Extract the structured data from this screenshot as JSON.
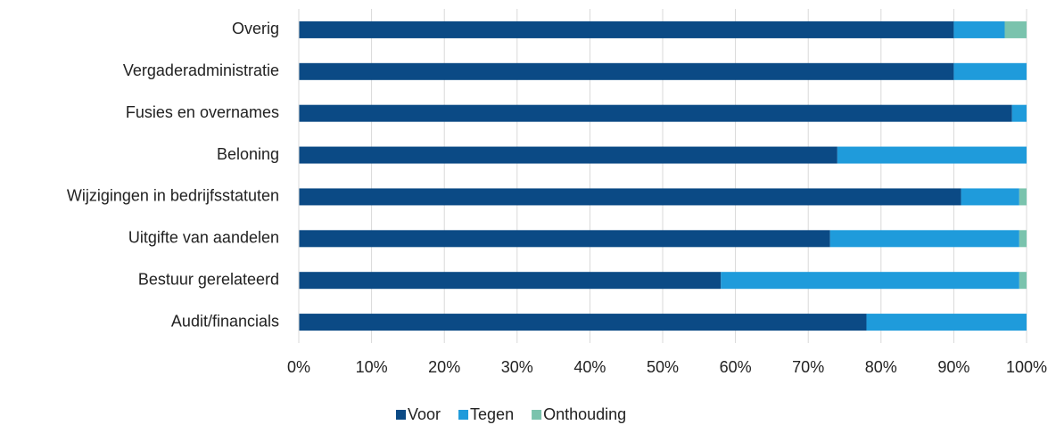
{
  "chart_data": {
    "type": "stacked_bar_horizontal",
    "categories": [
      "Overig",
      "Vergaderadministratie",
      "Fusies en overnames",
      "Beloning",
      "Wijzigingen in bedrijfsstatuten",
      "Uitgifte van aandelen",
      "Bestuur gerelateerd",
      "Audit/financials"
    ],
    "series": [
      {
        "name": "Voor",
        "color": "#0b4a85",
        "values": [
          90,
          90,
          98,
          74,
          91,
          73,
          58,
          78
        ]
      },
      {
        "name": "Tegen",
        "color": "#1f9bdb",
        "values": [
          7,
          10,
          2,
          26,
          8,
          26,
          41,
          22
        ]
      },
      {
        "name": "Onthouding",
        "color": "#7ac3ad",
        "values": [
          3,
          0,
          0,
          0,
          1,
          1,
          1,
          0
        ]
      }
    ],
    "xlim": [
      0,
      100
    ],
    "xticks": [
      {
        "value": 0,
        "label": "0%"
      },
      {
        "value": 10,
        "label": "10%"
      },
      {
        "value": 20,
        "label": "20%"
      },
      {
        "value": 30,
        "label": "30%"
      },
      {
        "value": 40,
        "label": "40%"
      },
      {
        "value": 50,
        "label": "50%"
      },
      {
        "value": 60,
        "label": "60%"
      },
      {
        "value": 70,
        "label": "70%"
      },
      {
        "value": 80,
        "label": "80%"
      },
      {
        "value": 90,
        "label": "90%"
      },
      {
        "value": 100,
        "label": "100%"
      }
    ],
    "grid": true,
    "legend": "bottom"
  }
}
